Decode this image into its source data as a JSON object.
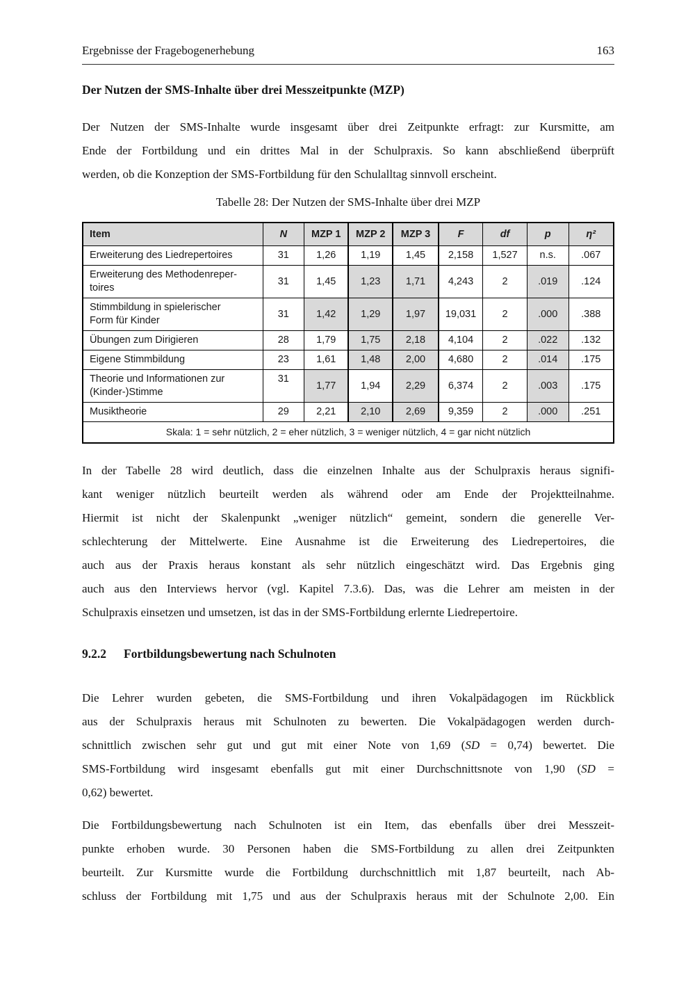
{
  "page": {
    "running_head": "Ergebnisse der Fragebogenerhebung",
    "page_number": "163"
  },
  "content": {
    "subheading": "Der Nutzen der SMS-Inhalte über drei Messzeitpunkte (MZP)",
    "table_caption": "Tabelle 28: Der Nutzen der SMS-Inhalte über drei MZP",
    "section_heading": {
      "number": "9.2.2",
      "title": "Fortbildungsbewertung nach Schulnoten"
    },
    "paragraphs": {
      "intro": {
        "continues": false,
        "lines": [
          "Der Nutzen der SMS-Inhalte wurde insgesamt über drei Zeitpunkte erfragt: zur Kursmitte, am",
          "Ende der Fortbildung und ein drittes Mal in der Schulpraxis. So kann abschließend überprüft",
          "werden, ob die Konzeption der SMS-Fortbildung für den Schulalltag sinnvoll erscheint."
        ]
      },
      "analysis": {
        "continues": false,
        "lines": [
          "In der Tabelle 28 wird deutlich, dass die einzelnen Inhalte aus der Schulpraxis heraus signifi-",
          "kant weniger nützlich beurteilt werden als während oder am Ende der Projektteilnahme.",
          "Hiermit ist nicht der Skalenpunkt „weniger nützlich“ gemeint, sondern die generelle Ver-",
          "schlechterung der Mittelwerte. Eine Ausnahme ist die Erweiterung des Liedrepertoires, die",
          "auch aus der Praxis heraus konstant als sehr nützlich eingeschätzt wird. Das Ergebnis ging",
          "auch aus den Interviews hervor (vgl. Kapitel 7.3.6). Das, was die Lehrer am meisten in der",
          "Schulpraxis einsetzen und umsetzen, ist das in der SMS-Fortbildung erlernte Liedrepertoire."
        ]
      },
      "rating": {
        "continues": false,
        "lines": [
          "Die Lehrer wurden gebeten, die SMS-Fortbildung und ihren Vokalpädagogen im Rückblick",
          "aus der Schulpraxis heraus mit Schulnoten zu bewerten. Die Vokalpädagogen werden durch-",
          [
            {
              "t": "schnittlich zwischen sehr gut und gut mit einer Note von 1,69 ("
            },
            {
              "t": "SD",
              "i": true
            },
            {
              "t": " = 0,74) bewertet. Die"
            }
          ],
          [
            {
              "t": "SMS-Fortbildung wird insgesamt ebenfalls gut mit einer Durchschnittsnote von 1,90 ("
            },
            {
              "t": "SD",
              "i": true
            },
            {
              "t": " ="
            }
          ],
          "0,62) bewertet."
        ]
      },
      "grades": {
        "continues": true,
        "lines": [
          "Die Fortbildungsbewertung nach Schulnoten ist ein Item, das ebenfalls über drei Messzeit-",
          "punkte erhoben wurde. 30 Personen haben die SMS-Fortbildung zu allen drei Zeitpunkten",
          "beurteilt. Zur Kursmitte wurde die Fortbildung durchschnittlich mit 1,87 beurteilt, nach Ab-",
          "schluss der Fortbildung mit 1,75 und aus der Schulpraxis heraus mit der Schulnote 2,00. Ein"
        ]
      }
    }
  },
  "table": {
    "shade_color": "#d9d9d9",
    "columns": [
      {
        "label": "Item",
        "italic": false
      },
      {
        "label": "N",
        "italic": true
      },
      {
        "label": "MZP 1",
        "italic": false
      },
      {
        "label": "MZP 2",
        "italic": false
      },
      {
        "label": "MZP 3",
        "italic": false
      },
      {
        "label": "F",
        "italic": true
      },
      {
        "label": "df",
        "italic": true
      },
      {
        "label": "p",
        "italic": true
      },
      {
        "label": "η²",
        "italic": true
      }
    ],
    "rows": [
      {
        "cells": [
          "Erweiterung des Liedrepertoires",
          "31",
          "1,26",
          "1,19",
          "1,45",
          "2,158",
          "1,527",
          "n.s.",
          ".067"
        ],
        "shaded": []
      },
      {
        "cells": [
          "Erweiterung des Methodenreper-\ntoires",
          "31",
          "1,45",
          "1,23",
          "1,71",
          "4,243",
          "2",
          ".019",
          ".124"
        ],
        "shaded": [
          3,
          4,
          7
        ]
      },
      {
        "cells": [
          "Stimmbildung in spielerischer\nForm für Kinder",
          "31",
          "1,42",
          "1,29",
          "1,97",
          "19,031",
          "2",
          ".000",
          ".388"
        ],
        "shaded": [
          2,
          3,
          4,
          7
        ]
      },
      {
        "cells": [
          "Übungen zum Dirigieren",
          "28",
          "1,79",
          "1,75",
          "2,18",
          "4,104",
          "2",
          ".022",
          ".132"
        ],
        "shaded": [
          3,
          4,
          7
        ]
      },
      {
        "cells": [
          "Eigene Stimmbildung",
          "23",
          "1,61",
          "1,48",
          "2,00",
          "4,680",
          "2",
          ".014",
          ".175"
        ],
        "shaded": [
          3,
          4,
          7
        ]
      },
      {
        "cells": [
          "Theorie und Informationen zur\n(Kinder-)Stimme",
          "31",
          "1,77",
          "1,94",
          "2,29",
          "6,374",
          "2",
          ".003",
          ".175"
        ],
        "shaded": [
          2,
          4,
          7
        ],
        "n_top": true
      },
      {
        "cells": [
          "Musiktheorie",
          "29",
          "2,21",
          "2,10",
          "2,69",
          "9,359",
          "2",
          ".000",
          ".251"
        ],
        "shaded": [
          3,
          4,
          7
        ]
      }
    ],
    "note": "Skala: 1 = sehr nützlich, 2 = eher nützlich, 3 = weniger nützlich, 4 = gar nicht nützlich"
  }
}
